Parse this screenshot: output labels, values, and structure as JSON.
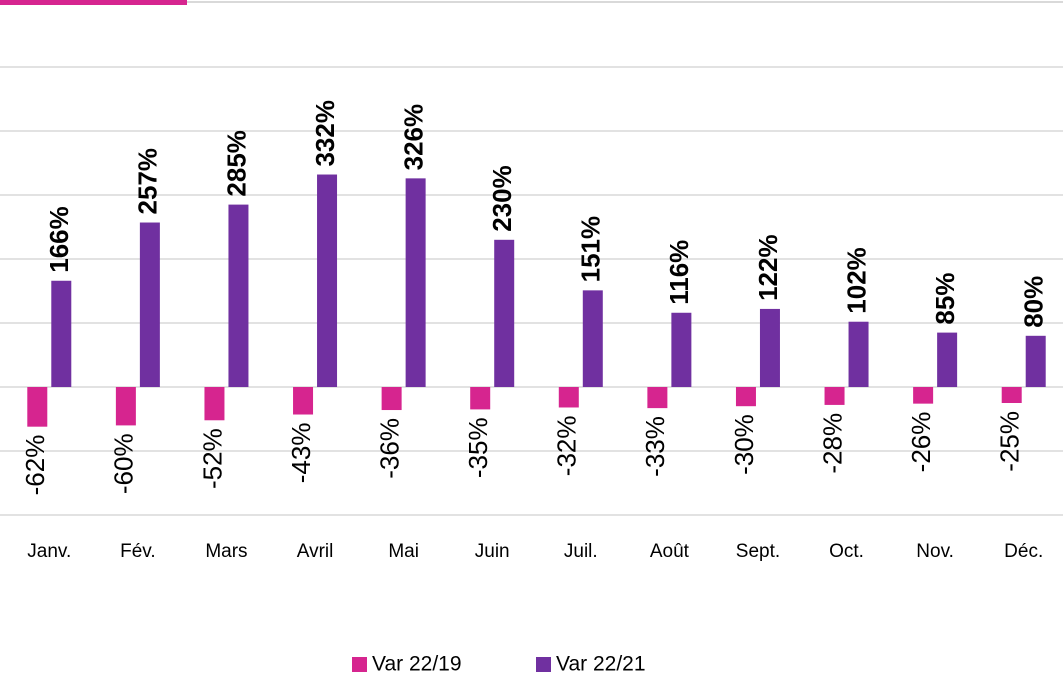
{
  "chart_data": {
    "type": "bar",
    "categories": [
      "Janv.",
      "Fév.",
      "Mars",
      "Avril",
      "Mai",
      "Juin",
      "Juil.",
      "Août",
      "Sept.",
      "Oct.",
      "Nov.",
      "Déc."
    ],
    "series": [
      {
        "name": "Var 22/19",
        "color": "#d6258f",
        "values": [
          -62,
          -60,
          -52,
          -43,
          -36,
          -35,
          -32,
          -33,
          -30,
          -28,
          -26,
          -25
        ],
        "value_labels": [
          "-62%",
          "-60%",
          "-52%",
          "-43%",
          "-36%",
          "-35%",
          "-32%",
          "-33%",
          "-30%",
          "-28%",
          "-26%",
          "-25%"
        ]
      },
      {
        "name": "Var 22/21",
        "color": "#7030a0",
        "values": [
          166,
          257,
          285,
          332,
          326,
          230,
          151,
          116,
          122,
          102,
          85,
          80
        ],
        "value_labels": [
          "166%",
          "257%",
          "285%",
          "332%",
          "326%",
          "230%",
          "151%",
          "116%",
          "122%",
          "102%",
          "85%",
          "80%"
        ]
      }
    ],
    "ylim": [
      -200,
      500
    ],
    "yticks": [
      -200,
      -100,
      0,
      100,
      200,
      300,
      400,
      500
    ],
    "grid": true,
    "legend": "bottom"
  }
}
